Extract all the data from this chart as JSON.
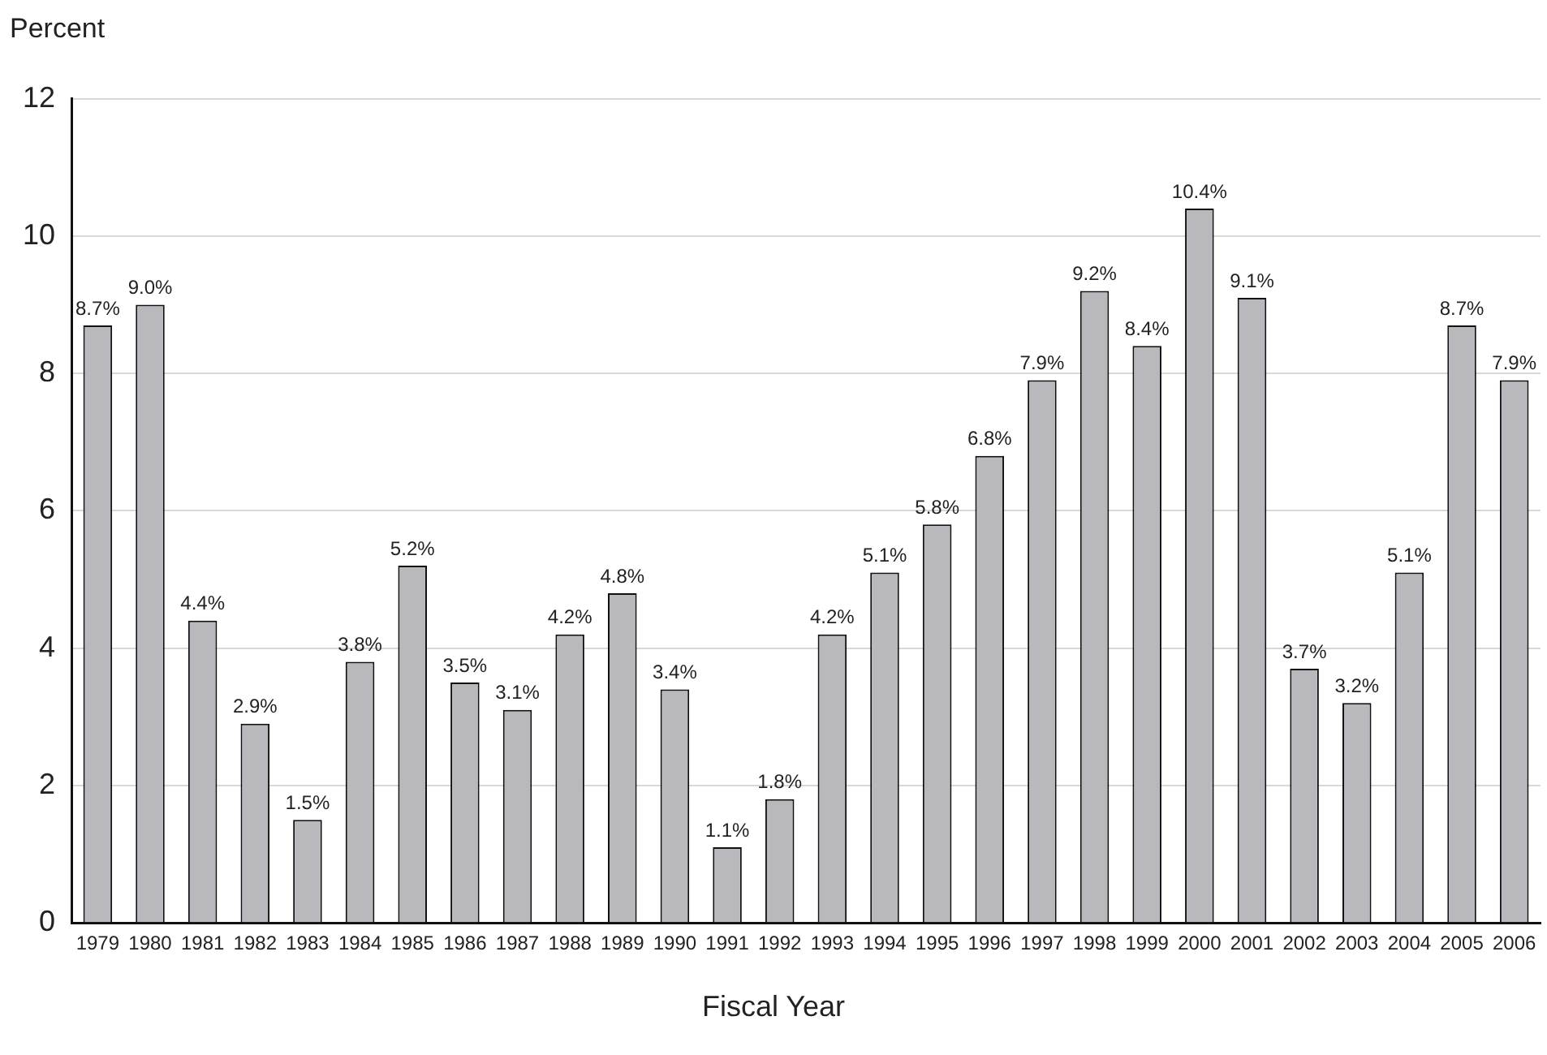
{
  "chart_data": {
    "type": "bar",
    "ylabel": "Percent",
    "xlabel": "Fiscal Year",
    "categories": [
      "1979",
      "1980",
      "1981",
      "1982",
      "1983",
      "1984",
      "1985",
      "1986",
      "1987",
      "1988",
      "1989",
      "1990",
      "1991",
      "1992",
      "1993",
      "1994",
      "1995",
      "1996",
      "1997",
      "1998",
      "1999",
      "2000",
      "2001",
      "2002",
      "2003",
      "2004",
      "2005",
      "2006"
    ],
    "values": [
      8.7,
      9.0,
      4.4,
      2.9,
      1.5,
      3.8,
      5.2,
      3.5,
      3.1,
      4.2,
      4.8,
      3.4,
      1.1,
      1.8,
      4.2,
      5.1,
      5.8,
      6.8,
      7.9,
      9.2,
      8.4,
      10.4,
      9.1,
      3.7,
      3.2,
      5.1,
      8.7,
      7.9
    ],
    "value_labels": [
      "8.7%",
      "9.0%",
      "4.4%",
      "2.9%",
      "1.5%",
      "3.8%",
      "5.2%",
      "3.5%",
      "3.1%",
      "4.2%",
      "4.8%",
      "3.4%",
      "1.1%",
      "1.8%",
      "4.2%",
      "5.1%",
      "5.8%",
      "6.8%",
      "7.9%",
      "9.2%",
      "8.4%",
      "10.4%",
      "9.1%",
      "3.7%",
      "3.2%",
      "5.1%",
      "8.7%",
      "7.9%"
    ],
    "color": "#b9b9bd",
    "ylim": [
      0,
      12
    ],
    "yticks": [
      0,
      2,
      4,
      6,
      8,
      10,
      12
    ],
    "grid": "y",
    "legend": false
  }
}
